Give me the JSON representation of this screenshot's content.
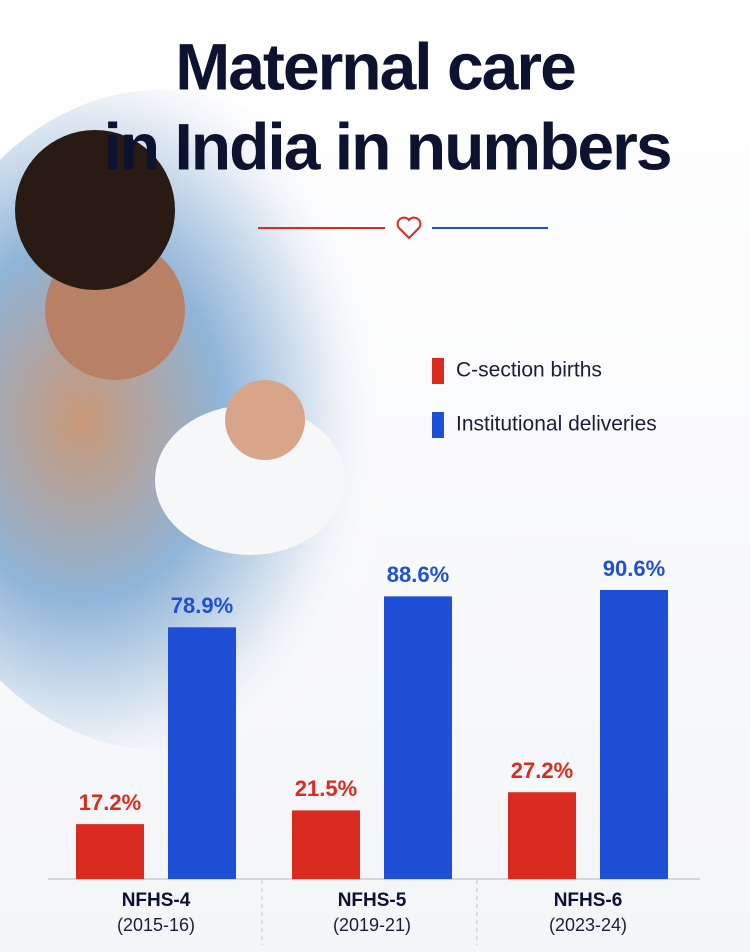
{
  "chart_data": {
    "type": "bar",
    "title": [
      "Maternal care",
      "in India in numbers"
    ],
    "categories": [
      "NFHS-4",
      "NFHS-5",
      "NFHS-6"
    ],
    "category_periods": [
      "(2015-16)",
      "(2019-21)",
      "(2023-24)"
    ],
    "series": [
      {
        "name": "C-section births",
        "color": "#d92b1f",
        "values": [
          17.2,
          21.5,
          27.2
        ],
        "value_labels": [
          "17.2%",
          "21.5%",
          "27.2%"
        ]
      },
      {
        "name": "Institutional deliveries",
        "color": "#1f4fd6",
        "values": [
          78.9,
          88.6,
          90.6
        ],
        "value_labels": [
          "78.9%",
          "88.6%",
          "90.6%"
        ]
      }
    ],
    "ylim": [
      0,
      100
    ]
  }
}
